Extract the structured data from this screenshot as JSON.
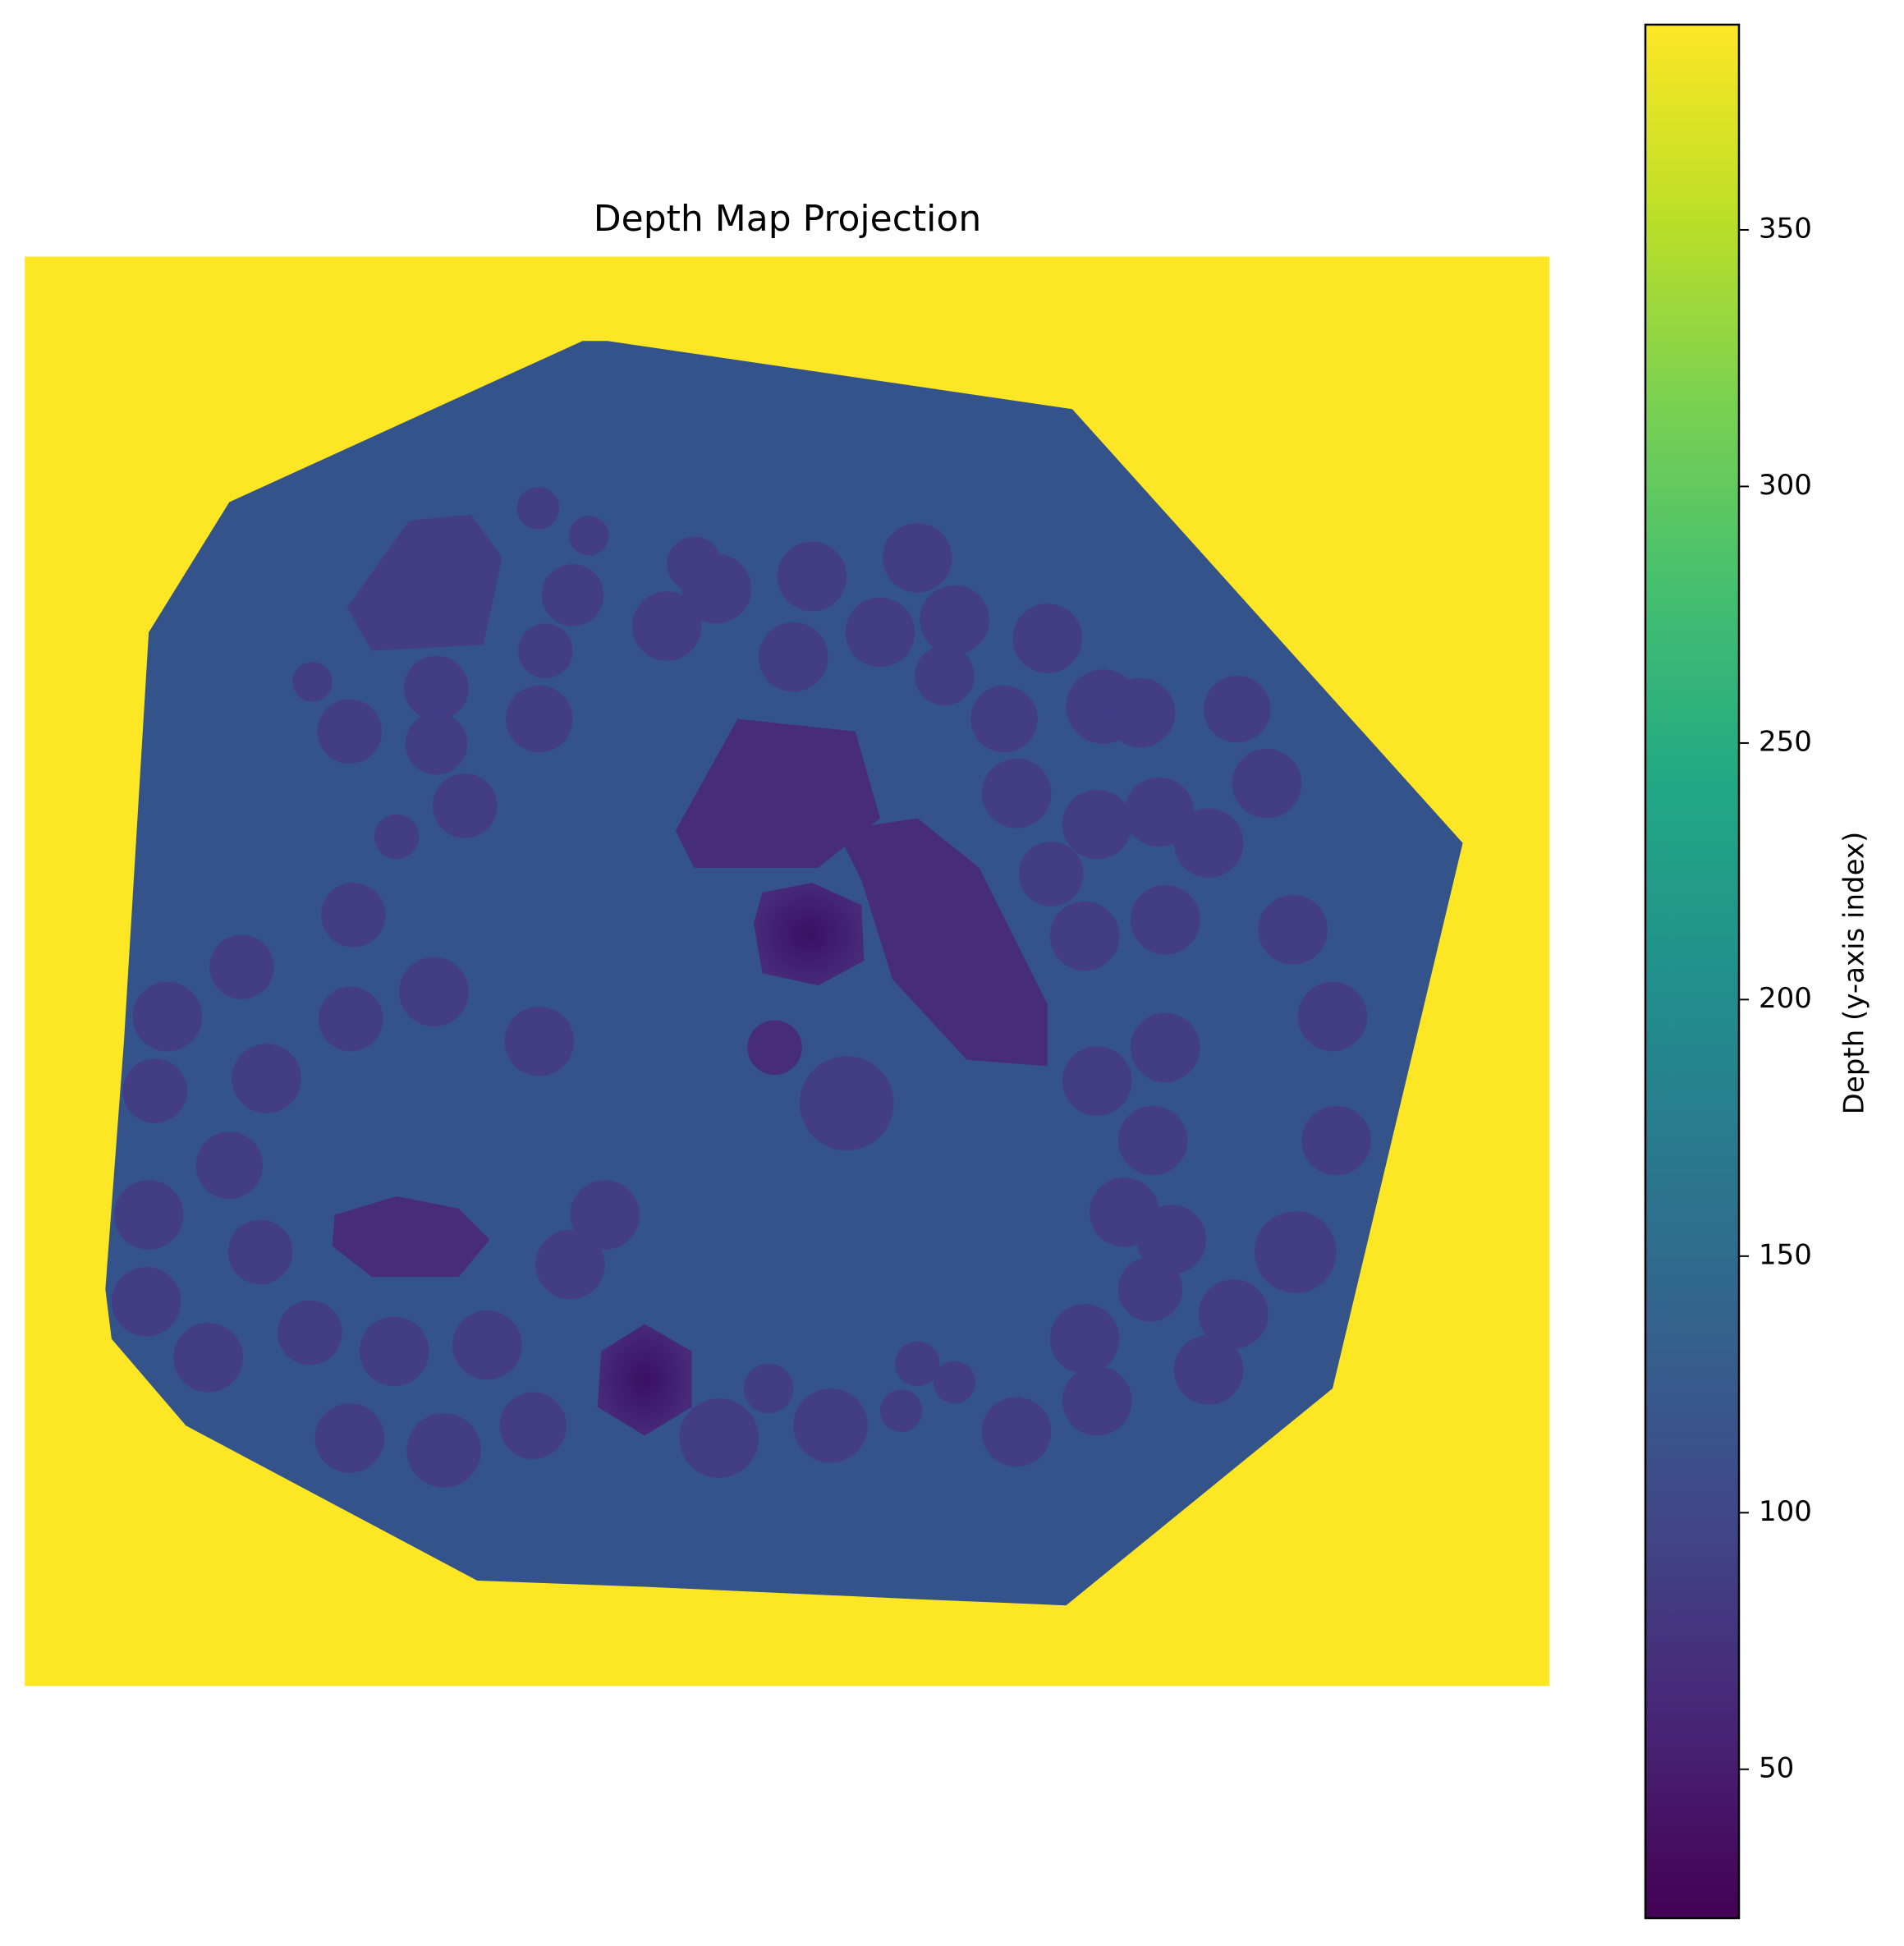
{
  "chart_data": {
    "type": "heatmap",
    "title": "Depth Map Projection",
    "colorbar_label": "Depth (y-axis index)",
    "clim": [
      21,
      390
    ],
    "cticks": [
      50,
      100,
      150,
      200,
      250,
      300,
      350
    ]
  }
}
